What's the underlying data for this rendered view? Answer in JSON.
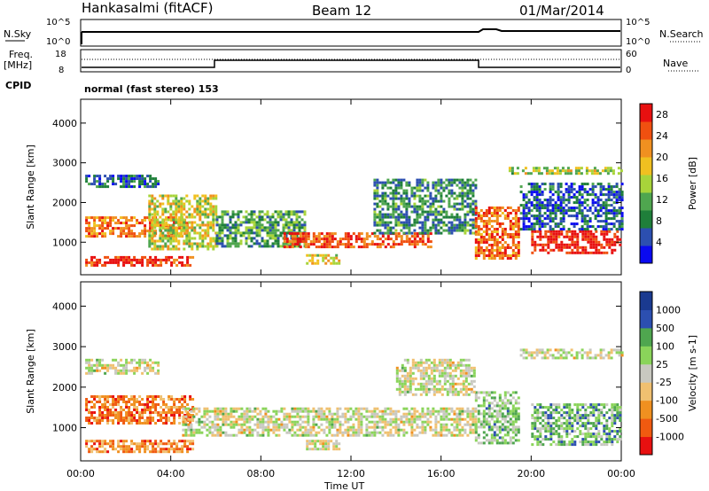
{
  "header": {
    "station": "Hankasalmi (fitACF)",
    "beam": "Beam 12",
    "date": "01/Mar/2014"
  },
  "summary_panels": {
    "nsky": {
      "label": "N.Sky",
      "ticks": [
        "10^5",
        "10^0"
      ]
    },
    "nsearch": {
      "label": "N.Search",
      "ticks": [
        "10^5",
        "10^0"
      ]
    },
    "freq": {
      "label": "Freq.",
      "unit": "[MHz]",
      "ticks": [
        "18",
        "8"
      ]
    },
    "nave": {
      "label": "Nave",
      "ticks": [
        "60",
        "0"
      ]
    },
    "cpid": {
      "label": "CPID",
      "text": "normal (fast stereo) 153"
    }
  },
  "colors": {
    "power_scale": [
      "#0a0af0",
      "#2c4fb0",
      "#1f7f3a",
      "#4fa64f",
      "#a8d43a",
      "#f0c020",
      "#f09020",
      "#f05010",
      "#e81010"
    ],
    "velocity_scale": [
      "#e81010",
      "#f05a10",
      "#f09020",
      "#f0c070",
      "#c8c8c0",
      "#8ad45a",
      "#4fa64f",
      "#2c4fb0",
      "#1a3a90"
    ]
  },
  "chart_data": [
    {
      "type": "heatmap",
      "title": "",
      "xlabel": "Time UT",
      "ylabel": "Slant Range [km]",
      "x_ticks": [
        "00:00",
        "04:00",
        "08:00",
        "12:00",
        "16:00",
        "20:00",
        "00:00"
      ],
      "y_ticks": [
        "1000",
        "2000",
        "3000",
        "4000"
      ],
      "xlim_hours": [
        0,
        24
      ],
      "ylim_km": [
        180,
        4600
      ],
      "colorbar": {
        "label": "Power [dB]",
        "ticks": [
          "4",
          "8",
          "12",
          "16",
          "20",
          "24",
          "28"
        ],
        "range": [
          0,
          30
        ]
      },
      "bands": [
        {
          "t0": 0.2,
          "t1": 4.8,
          "r0": 1150,
          "r1": 1650,
          "level": 0.75
        },
        {
          "t0": 0.2,
          "t1": 5.0,
          "r0": 400,
          "r1": 650,
          "level": 0.9
        },
        {
          "t0": 0.2,
          "t1": 3.5,
          "r0": 2400,
          "r1": 2700,
          "level": 0.2
        },
        {
          "t0": 3.0,
          "t1": 6.0,
          "r0": 800,
          "r1": 2200,
          "level": 0.55
        },
        {
          "t0": 6.0,
          "t1": 10.0,
          "r0": 900,
          "r1": 1800,
          "level": 0.35
        },
        {
          "t0": 9.0,
          "t1": 15.5,
          "r0": 850,
          "r1": 1250,
          "level": 0.85
        },
        {
          "t0": 10.0,
          "t1": 11.5,
          "r0": 450,
          "r1": 700,
          "level": 0.6
        },
        {
          "t0": 13.0,
          "t1": 17.5,
          "r0": 1200,
          "r1": 2600,
          "level": 0.3
        },
        {
          "t0": 17.5,
          "t1": 19.5,
          "r0": 600,
          "r1": 1900,
          "level": 0.8
        },
        {
          "t0": 19.0,
          "t1": 24.0,
          "r0": 2750,
          "r1": 2900,
          "level": 0.5
        },
        {
          "t0": 20.0,
          "t1": 24.0,
          "r0": 700,
          "r1": 1300,
          "level": 0.95
        },
        {
          "t0": 19.5,
          "t1": 24.0,
          "r0": 1300,
          "r1": 2500,
          "level": 0.2
        }
      ]
    },
    {
      "type": "heatmap",
      "title": "",
      "xlabel": "Time UT",
      "ylabel": "Slant Range [km]",
      "x_ticks": [
        "00:00",
        "04:00",
        "08:00",
        "12:00",
        "16:00",
        "20:00",
        "00:00"
      ],
      "y_ticks": [
        "1000",
        "2000",
        "3000",
        "4000"
      ],
      "xlim_hours": [
        0,
        24
      ],
      "ylim_km": [
        180,
        4600
      ],
      "colorbar": {
        "label": "Velocity [m s-1]",
        "ticks": [
          "1000",
          "500",
          "100",
          "25",
          "-25",
          "-100",
          "-500",
          "-1000"
        ],
        "range": [
          -1000,
          1000
        ]
      },
      "bands": [
        {
          "t0": 0.2,
          "t1": 5.0,
          "r0": 1100,
          "r1": 1800,
          "level": 0.22
        },
        {
          "t0": 0.2,
          "t1": 5.0,
          "r0": 400,
          "r1": 700,
          "level": 0.25
        },
        {
          "t0": 0.2,
          "t1": 3.5,
          "r0": 2350,
          "r1": 2700,
          "level": 0.5
        },
        {
          "t0": 4.5,
          "t1": 17.5,
          "r0": 800,
          "r1": 1500,
          "level": 0.5
        },
        {
          "t0": 10.0,
          "t1": 11.5,
          "r0": 450,
          "r1": 700,
          "level": 0.5
        },
        {
          "t0": 17.5,
          "t1": 19.5,
          "r0": 600,
          "r1": 1900,
          "level": 0.62
        },
        {
          "t0": 19.5,
          "t1": 24.0,
          "r0": 2750,
          "r1": 2950,
          "level": 0.5
        },
        {
          "t0": 20.0,
          "t1": 24.0,
          "r0": 600,
          "r1": 1600,
          "level": 0.66
        },
        {
          "t0": 14.0,
          "t1": 17.5,
          "r0": 1800,
          "r1": 2700,
          "level": 0.5
        }
      ]
    }
  ]
}
